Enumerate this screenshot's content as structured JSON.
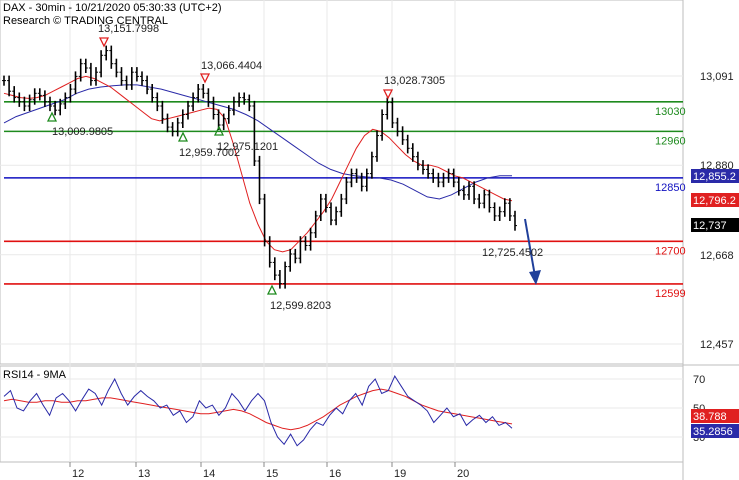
{
  "header": {
    "title": "DAX - 30min - 10/21/2020 05:30:33 (UTC+2)",
    "credit": "Research © TRADING CENTRAL"
  },
  "colors": {
    "price": "#000000",
    "ma_fast": "#e02020",
    "ma_slow": "#2a2aa8",
    "resistance": "#1e8a1e",
    "pivot": "#1010c0",
    "support": "#e01010",
    "arrow": "#1f3f9a",
    "grid": "#e9e9e9"
  },
  "chart_data": [
    {
      "type": "line",
      "name": "price",
      "ylim": [
        12380,
        13240
      ],
      "y_ticks": [
        {
          "value": 13091,
          "label": "13,091"
        },
        {
          "value": 12880,
          "label": "12,880"
        },
        {
          "value": 12668,
          "label": "12,668"
        },
        {
          "value": 12457,
          "label": "12,457"
        }
      ],
      "x_ticks": [
        "12",
        "13",
        "14",
        "15",
        "16",
        "19",
        "20"
      ],
      "levels": [
        {
          "value": 13030,
          "label": "13030",
          "kind": "resistance"
        },
        {
          "value": 12960,
          "label": "12960",
          "kind": "resistance"
        },
        {
          "value": 12850,
          "label": "12850",
          "kind": "pivot"
        },
        {
          "value": 12700,
          "label": "12700",
          "kind": "support"
        },
        {
          "value": 12599,
          "label": "12599",
          "kind": "support"
        }
      ],
      "tags": [
        {
          "label": "12,855.2",
          "value": 12855.2,
          "bg": "#2a2aa8",
          "fg": "#ffffff"
        },
        {
          "label": "12,796.2",
          "value": 12796.2,
          "bg": "#e02020",
          "fg": "#ffffff"
        },
        {
          "label": "12,737",
          "value": 12737,
          "bg": "#000000",
          "fg": "#ffffff"
        }
      ],
      "annotations": [
        {
          "label": "13,151.7998",
          "value": 13151.7998,
          "marker": "down"
        },
        {
          "label": "13,066.4404",
          "value": 13066.4404,
          "marker": "down"
        },
        {
          "label": "13,028.7305",
          "value": 13028.7305,
          "marker": "down"
        },
        {
          "label": "13,009.9805",
          "value": 13009.9805,
          "marker": "up"
        },
        {
          "label": "12,959.7002",
          "value": 12959.7002,
          "marker": "up"
        },
        {
          "label": "12,975.1201",
          "value": 12975.1201,
          "marker": "up"
        },
        {
          "label": "12,599.8203",
          "value": 12599.8203,
          "marker": "up"
        },
        {
          "label": "12,725.4502",
          "value": 12725.4502,
          "marker": "none"
        }
      ],
      "price_path": [
        13080,
        13055,
        13040,
        13030,
        13020,
        13035,
        13050,
        13045,
        13030,
        13020,
        13010,
        13025,
        13040,
        13060,
        13090,
        13120,
        13110,
        13080,
        13100,
        13140,
        13151,
        13120,
        13100,
        13080,
        13070,
        13100,
        13090,
        13080,
        13060,
        13040,
        13020,
        12990,
        12970,
        12960,
        12980,
        13000,
        13020,
        13040,
        13060,
        13050,
        13030,
        13000,
        12975,
        12990,
        13010,
        13030,
        13040,
        13035,
        13020,
        12890,
        12800,
        12700,
        12650,
        12620,
        12600,
        12640,
        12670,
        12660,
        12700,
        12690,
        12720,
        12760,
        12800,
        12780,
        12750,
        12770,
        12800,
        12840,
        12860,
        12850,
        12830,
        12860,
        12900,
        12950,
        13000,
        13028,
        12980,
        12960,
        12940,
        12920,
        12900,
        12880,
        12870,
        12860,
        12850,
        12840,
        12850,
        12860,
        12840,
        12820,
        12810,
        12830,
        12800,
        12790,
        12810,
        12780,
        12760,
        12770,
        12790,
        12760,
        12737
      ],
      "ma_fast_path": [
        13050,
        13045,
        13040,
        13038,
        13040,
        13045,
        13055,
        13065,
        13075,
        13085,
        13090,
        13085,
        13075,
        13065,
        13050,
        13035,
        13020,
        13005,
        12990,
        12985,
        12990,
        12995,
        13000,
        13005,
        13010,
        13015,
        13012,
        12990,
        12930,
        12860,
        12790,
        12740,
        12700,
        12680,
        12675,
        12680,
        12700,
        12720,
        12745,
        12770,
        12800,
        12840,
        12880,
        12920,
        12950,
        12965,
        12960,
        12945,
        12925,
        12905,
        12890,
        12880,
        12880,
        12875,
        12865,
        12855,
        12850,
        12840,
        12830,
        12820,
        12810,
        12800,
        12796
      ],
      "ma_slow_path": [
        12980,
        12995,
        13005,
        13015,
        13025,
        13035,
        13050,
        13060,
        13065,
        13068,
        13070,
        13070,
        13065,
        13060,
        13052,
        13044,
        13036,
        13028,
        13020,
        13012,
        13000,
        12985,
        12965,
        12945,
        12925,
        12905,
        12885,
        12870,
        12860,
        12855,
        12852,
        12850,
        12845,
        12835,
        12820,
        12805,
        12800,
        12810,
        12825,
        12840,
        12850,
        12855,
        12855
      ]
    },
    {
      "type": "line",
      "name": "rsi",
      "title": "RSI14 - 9MA",
      "ylim": [
        15,
        85
      ],
      "y_ticks": [
        {
          "value": 70,
          "label": "70"
        },
        {
          "value": 50,
          "label": "50"
        },
        {
          "value": 30,
          "label": "30"
        }
      ],
      "tags": [
        {
          "label": "38.788",
          "value": 38.788,
          "bg": "#e02020",
          "fg": "#ffffff"
        },
        {
          "label": "35.2856",
          "value": 35.2856,
          "bg": "#2a2aa8",
          "fg": "#ffffff"
        }
      ],
      "rsi_path": [
        58,
        62,
        50,
        48,
        55,
        60,
        52,
        45,
        57,
        60,
        55,
        48,
        56,
        63,
        60,
        52,
        62,
        70,
        60,
        52,
        58,
        62,
        58,
        55,
        50,
        52,
        45,
        48,
        40,
        44,
        55,
        50,
        52,
        45,
        50,
        60,
        55,
        48,
        55,
        60,
        55,
        40,
        30,
        25,
        32,
        24,
        28,
        35,
        40,
        38,
        45,
        50,
        46,
        55,
        60,
        52,
        65,
        70,
        60,
        62,
        72,
        65,
        58,
        55,
        52,
        48,
        40,
        45,
        50,
        44,
        46,
        38,
        42,
        45,
        40,
        44,
        38,
        40,
        36
      ],
      "rsi_ma_path": [
        55,
        56,
        55,
        54,
        54,
        55,
        55,
        54,
        54,
        55,
        55,
        56,
        57,
        57,
        56,
        55,
        54,
        53,
        52,
        51,
        50,
        49,
        48,
        47,
        46,
        46,
        47,
        48,
        49,
        48,
        46,
        43,
        40,
        38,
        36,
        35,
        36,
        38,
        41,
        44,
        48,
        52,
        55,
        58,
        60,
        62,
        63,
        62,
        60,
        58,
        55,
        52,
        50,
        48,
        47,
        46,
        45,
        44,
        43,
        42,
        41,
        40,
        39
      ]
    }
  ]
}
